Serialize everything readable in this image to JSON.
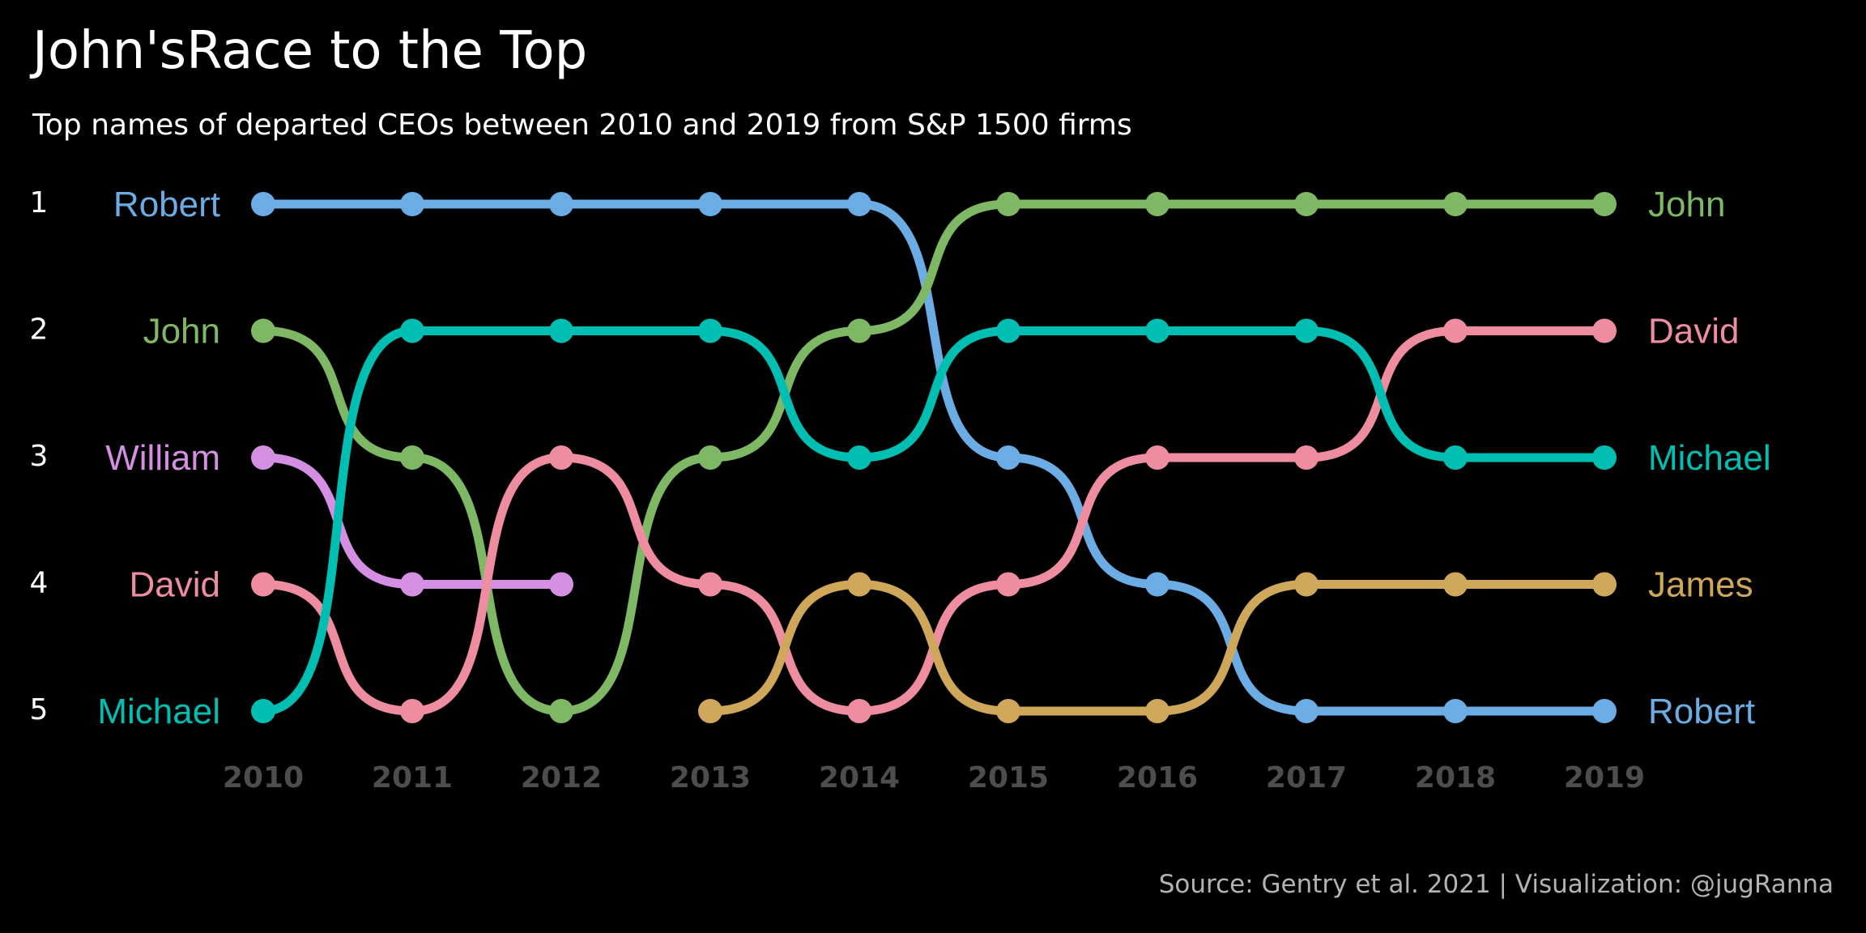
{
  "title": "John'sRace to the Top",
  "subtitle": "Top names of departed CEOs between 2010 and 2019 from S&P 1500 firms",
  "caption": "Source: Gentry et al. 2021 |  Visualization: @jugRanna",
  "chart_data": {
    "type": "line",
    "subtype": "bump",
    "x": [
      2010,
      2011,
      2012,
      2013,
      2014,
      2015,
      2016,
      2017,
      2018,
      2019
    ],
    "rank_labels": [
      "1",
      "2",
      "3",
      "4",
      "5"
    ],
    "y_reversed": true,
    "ylim": [
      1,
      5
    ],
    "grid": false,
    "legend": "none (direct end labels)",
    "series": [
      {
        "name": "Robert",
        "color": "#6cace4",
        "ranks": [
          1,
          1,
          1,
          1,
          1,
          3,
          4,
          5,
          5,
          5
        ]
      },
      {
        "name": "John",
        "color": "#7fb865",
        "ranks": [
          2,
          3,
          5,
          3,
          2,
          1,
          1,
          1,
          1,
          1
        ]
      },
      {
        "name": "William",
        "color": "#d48fe3",
        "ranks": [
          3,
          4,
          4,
          null,
          null,
          null,
          null,
          null,
          null,
          null
        ]
      },
      {
        "name": "David",
        "color": "#ee8da0",
        "ranks": [
          4,
          5,
          3,
          4,
          5,
          4,
          3,
          3,
          2,
          2
        ]
      },
      {
        "name": "Michael",
        "color": "#00bfb2",
        "ranks": [
          5,
          2,
          2,
          2,
          3,
          2,
          2,
          2,
          3,
          3
        ]
      },
      {
        "name": "James",
        "color": "#cfa75a",
        "ranks": [
          null,
          null,
          null,
          5,
          4,
          5,
          5,
          4,
          4,
          4
        ]
      }
    ]
  }
}
